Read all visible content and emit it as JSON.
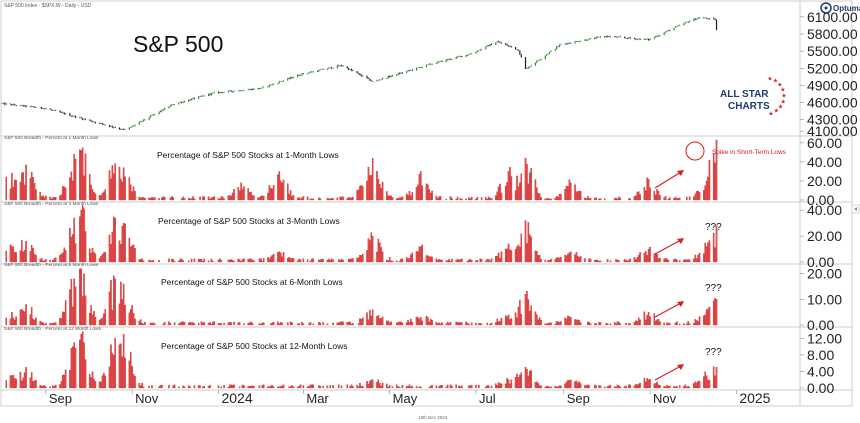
{
  "header": {
    "instrument": "S&P 500 Index - $SPX.W - Daily - USD",
    "big_title": "S&P 500",
    "source_logo": "Optuma",
    "brand_line1": "ALL STAR",
    "brand_line2": "CHARTS",
    "footer_date": "18th Dec 2024"
  },
  "colors": {
    "candle_up": "#2e8b2e",
    "candle_down": "#1a1a1a",
    "bar_fill": "#e84a4a",
    "bar_stroke": "#b82020",
    "arrow": "#d62020",
    "annotation": "#d62020",
    "grid": "#cccccc",
    "brand_blue": "#1f3a6e",
    "brand_red": "#d62020"
  },
  "x_axis": {
    "labels": [
      "Sep",
      "Nov",
      "2024",
      "Mar",
      "May",
      "Jul",
      "Sep",
      "Nov",
      "2025"
    ],
    "range": [
      "2023-08-01",
      "2025-02-15"
    ]
  },
  "chart_data": [
    {
      "type": "line",
      "panel": "price",
      "series_name": "S&P 500 Index - $SPX.W - Daily - USD",
      "title": "S&P 500",
      "y_ticks": [
        4100,
        4300,
        4600,
        4900,
        5200,
        5500,
        5800,
        6100
      ],
      "y_tick_labels": [
        "4100.00",
        "4300.00",
        "4600.00",
        "4900.00",
        "5200.00",
        "5500.00",
        "5800.00",
        "6100.00"
      ],
      "ylim": [
        4050,
        6150
      ],
      "x": [
        "2023-08-01",
        "2023-08-31",
        "2023-10-01",
        "2023-10-27",
        "2023-11-30",
        "2023-12-29",
        "2024-01-31",
        "2024-02-29",
        "2024-03-28",
        "2024-04-19",
        "2024-04-30",
        "2024-05-31",
        "2024-06-28",
        "2024-07-16",
        "2024-07-31",
        "2024-08-05",
        "2024-08-30",
        "2024-09-30",
        "2024-10-31",
        "2024-11-29",
        "2024-12-06",
        "2024-12-17",
        "2024-12-18"
      ],
      "values": [
        4580,
        4500,
        4290,
        4117,
        4570,
        4770,
        4850,
        5100,
        5250,
        4967,
        5050,
        5280,
        5460,
        5667,
        5520,
        5186,
        5620,
        5760,
        5700,
        6030,
        6090,
        6050,
        5872
      ]
    },
    {
      "type": "bar",
      "panel": "breadth-1m",
      "series_name": "S&P 500 Breadth - Percent at 1 Month Lows",
      "title": "Percentage of S&P 500 Stocks at 1-Month Lows",
      "annotation": "Spike in Short-Term Lows",
      "y_ticks": [
        0,
        20,
        40,
        60
      ],
      "y_tick_labels": [
        "0.00",
        "20.00",
        "40.00",
        "60.00"
      ],
      "ylim": [
        0,
        64
      ],
      "peaks": [
        {
          "x": "2023-08-08",
          "value": 28
        },
        {
          "x": "2023-08-18",
          "value": 37
        },
        {
          "x": "2023-09-21",
          "value": 48
        },
        {
          "x": "2023-09-26",
          "value": 52
        },
        {
          "x": "2023-10-20",
          "value": 38
        },
        {
          "x": "2023-10-26",
          "value": 34
        },
        {
          "x": "2024-01-17",
          "value": 18
        },
        {
          "x": "2024-02-13",
          "value": 30
        },
        {
          "x": "2024-04-15",
          "value": 20
        },
        {
          "x": "2024-04-19",
          "value": 44
        },
        {
          "x": "2024-05-23",
          "value": 30
        },
        {
          "x": "2024-07-24",
          "value": 30
        },
        {
          "x": "2024-08-05",
          "value": 44
        },
        {
          "x": "2024-09-06",
          "value": 18
        },
        {
          "x": "2024-10-31",
          "value": 22
        },
        {
          "x": "2024-12-11",
          "value": 20
        },
        {
          "x": "2024-12-18",
          "value": 63
        }
      ],
      "question": ""
    },
    {
      "type": "bar",
      "panel": "breadth-3m",
      "series_name": "S&P 500 Breadth - Percent at 3 Month Lows",
      "title": "Percentage of S&P 500 Stocks at 3-Month Lows",
      "annotation": "",
      "y_ticks": [
        0,
        20,
        40
      ],
      "y_tick_labels": [
        "0.00",
        "20.00",
        "40.00"
      ],
      "ylim": [
        0,
        44
      ],
      "peaks": [
        {
          "x": "2023-08-08",
          "value": 12
        },
        {
          "x": "2023-08-18",
          "value": 16
        },
        {
          "x": "2023-09-21",
          "value": 34
        },
        {
          "x": "2023-09-26",
          "value": 40
        },
        {
          "x": "2023-10-20",
          "value": 34
        },
        {
          "x": "2023-10-26",
          "value": 30
        },
        {
          "x": "2024-02-13",
          "value": 8
        },
        {
          "x": "2024-04-19",
          "value": 20
        },
        {
          "x": "2024-05-23",
          "value": 12
        },
        {
          "x": "2024-07-24",
          "value": 14
        },
        {
          "x": "2024-08-05",
          "value": 32
        },
        {
          "x": "2024-09-06",
          "value": 8
        },
        {
          "x": "2024-10-31",
          "value": 10
        },
        {
          "x": "2024-12-11",
          "value": 12
        },
        {
          "x": "2024-12-18",
          "value": 28
        }
      ],
      "question": "???"
    },
    {
      "type": "bar",
      "panel": "breadth-6m",
      "series_name": "S&P 500 Breadth - Percent at 6 Month Lows",
      "title": "Percentage of S&P 500 Stocks at 6-Month Lows",
      "annotation": "",
      "y_ticks": [
        0,
        10,
        20
      ],
      "y_tick_labels": [
        "0.00",
        "10.00",
        "20.00"
      ],
      "ylim": [
        0,
        23
      ],
      "peaks": [
        {
          "x": "2023-08-08",
          "value": 5
        },
        {
          "x": "2023-08-18",
          "value": 8
        },
        {
          "x": "2023-09-21",
          "value": 18
        },
        {
          "x": "2023-09-26",
          "value": 22
        },
        {
          "x": "2023-10-20",
          "value": 18
        },
        {
          "x": "2023-10-26",
          "value": 16
        },
        {
          "x": "2024-04-19",
          "value": 6
        },
        {
          "x": "2024-05-23",
          "value": 3
        },
        {
          "x": "2024-07-24",
          "value": 4
        },
        {
          "x": "2024-08-05",
          "value": 12
        },
        {
          "x": "2024-09-06",
          "value": 3
        },
        {
          "x": "2024-10-31",
          "value": 5
        },
        {
          "x": "2024-12-11",
          "value": 6
        },
        {
          "x": "2024-12-18",
          "value": 10
        }
      ],
      "question": "???"
    },
    {
      "type": "bar",
      "panel": "breadth-12m",
      "series_name": "S&P 500 Breadth - Percent at 12 Month Lows",
      "title": "Percentage of S&P 500 Stocks at 12-Month Lows",
      "annotation": "",
      "y_ticks": [
        0,
        4,
        8,
        12
      ],
      "y_tick_labels": [
        "0.00",
        "4.00",
        "8.00",
        "12.00"
      ],
      "ylim": [
        0,
        14
      ],
      "peaks": [
        {
          "x": "2023-08-08",
          "value": 3
        },
        {
          "x": "2023-08-18",
          "value": 5
        },
        {
          "x": "2023-09-21",
          "value": 11
        },
        {
          "x": "2023-09-26",
          "value": 13
        },
        {
          "x": "2023-10-20",
          "value": 12
        },
        {
          "x": "2023-10-26",
          "value": 13
        },
        {
          "x": "2024-04-19",
          "value": 2
        },
        {
          "x": "2024-07-24",
          "value": 2
        },
        {
          "x": "2024-08-05",
          "value": 5
        },
        {
          "x": "2024-09-06",
          "value": 2
        },
        {
          "x": "2024-10-31",
          "value": 2
        },
        {
          "x": "2024-12-11",
          "value": 3
        },
        {
          "x": "2024-12-18",
          "value": 5
        }
      ],
      "question": "???"
    }
  ]
}
